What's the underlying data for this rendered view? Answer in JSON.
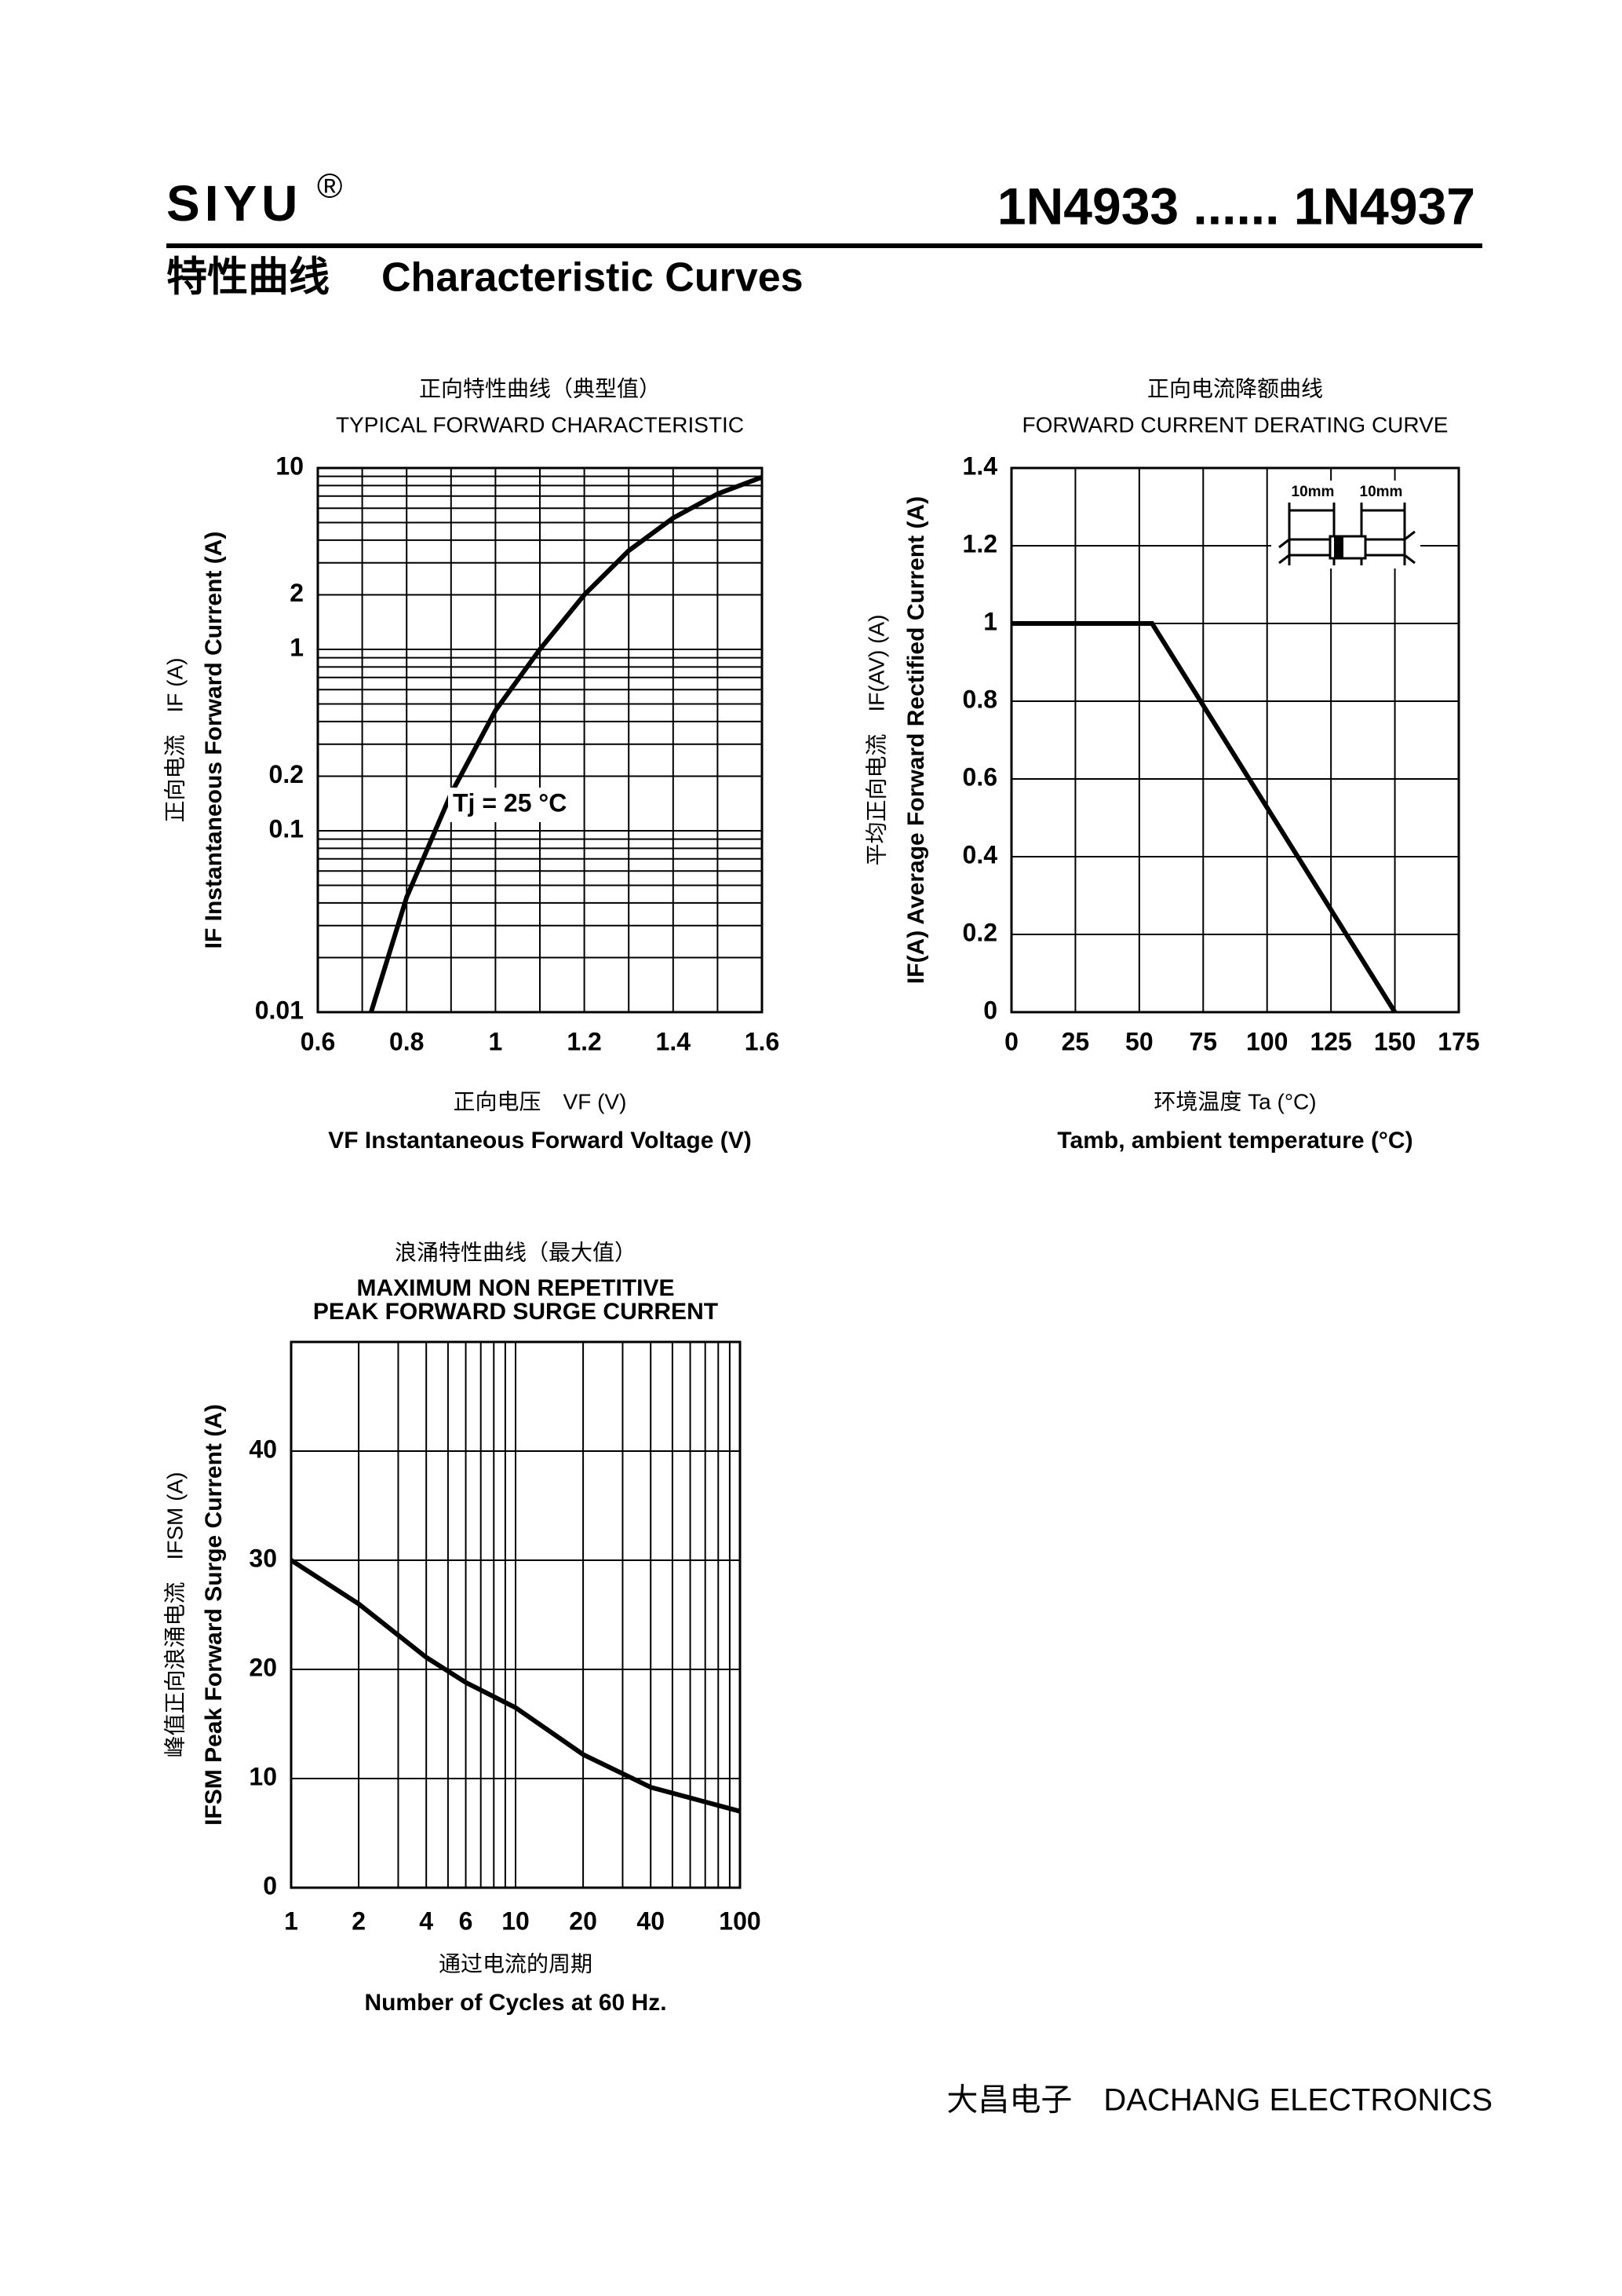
{
  "header": {
    "brand": "SIYU",
    "registered": "®",
    "part_range": "1N4933 ...... 1N4937",
    "section_cn": "特性曲线",
    "section_en": "Characteristic Curves"
  },
  "footer": "大昌电子　DACHANG ELECTRONICS",
  "chart_data": [
    {
      "type": "line",
      "titles": [
        "正向特性曲线（典型值）",
        "TYPICAL FORWARD CHARACTERISTIC"
      ],
      "xlabels": [
        "正向电压　VF (V)",
        "VF Instantaneous Forward Voltage (V)"
      ],
      "ylabels": [
        "正向电流　IF (A)",
        "IF Instantaneous Forward Current (A)"
      ],
      "annotation": "Tj = 25 °C",
      "log_y": true,
      "xlim": [
        0.6,
        1.6
      ],
      "ylim": [
        0.01,
        10
      ],
      "xticks": [
        0.6,
        0.8,
        1,
        1.2,
        1.4,
        1.6
      ],
      "yticks": [
        10,
        2,
        1,
        0.2,
        0.1,
        0.01
      ],
      "xgrid": [
        0.7,
        0.8,
        0.9,
        1,
        1.1,
        1.2,
        1.3,
        1.4,
        1.5
      ],
      "ygrid": [
        0.02,
        0.03,
        0.04,
        0.05,
        0.06,
        0.07,
        0.08,
        0.09,
        0.1,
        0.2,
        0.3,
        0.4,
        0.5,
        0.6,
        0.7,
        0.8,
        0.9,
        1,
        2,
        3,
        4,
        5,
        6,
        7,
        8,
        9
      ],
      "x": [
        0.72,
        0.8,
        0.9,
        1.0,
        1.1,
        1.2,
        1.3,
        1.4,
        1.5,
        1.6
      ],
      "series": [
        {
          "color": "#000000",
          "values": [
            0.01,
            0.043,
            0.16,
            0.46,
            1.0,
            2.0,
            3.5,
            5.3,
            7.2,
            8.9
          ]
        }
      ]
    },
    {
      "type": "line",
      "titles": [
        "正向电流降额曲线",
        "FORWARD CURRENT DERATING CURVE"
      ],
      "xlabels": [
        "环境温度 Ta (°C)",
        "Tamb, ambient temperature (°C)"
      ],
      "ylabels": [
        "平均正向电流　IF(AV) (A)",
        "IF(A) Average Forward Rectified Current (A)"
      ],
      "inset_labels": [
        "10mm",
        "10mm"
      ],
      "xlim": [
        0,
        175
      ],
      "ylim": [
        0,
        1.4
      ],
      "xticks": [
        0,
        25,
        50,
        75,
        100,
        125,
        150,
        175
      ],
      "yticks": [
        0,
        0.2,
        0.4,
        0.6,
        0.8,
        1,
        1.2,
        1.4
      ],
      "x": [
        0,
        55,
        150
      ],
      "series": [
        {
          "color": "#000000",
          "values": [
            1,
            1,
            0
          ]
        }
      ]
    },
    {
      "type": "line",
      "titles": [
        "浪涌特性曲线（最大值）",
        "MAXIMUM NON REPETITIVE",
        "PEAK FORWARD SURGE CURRENT"
      ],
      "xlabels": [
        "通过电流的周期",
        "Number  of  Cycles at 60 Hz."
      ],
      "ylabels": [
        "峰值正向浪涌电流　IFSM (A)",
        "IFSM Peak Forward Surge Current (A)"
      ],
      "log_x": true,
      "xlim": [
        1,
        100
      ],
      "ylim": [
        0,
        50
      ],
      "xticks": [
        1,
        2,
        4,
        6,
        10,
        20,
        40,
        100
      ],
      "yticks": [
        0,
        10,
        20,
        30,
        40
      ],
      "xgrid": [
        2,
        3,
        4,
        5,
        6,
        7,
        8,
        9,
        10,
        20,
        30,
        40,
        50,
        60,
        70,
        80,
        90
      ],
      "x": [
        1,
        2,
        4,
        6,
        10,
        20,
        40,
        100
      ],
      "series": [
        {
          "color": "#000000",
          "values": [
            30,
            26,
            21.1,
            18.8,
            16.5,
            12.2,
            9.2,
            7.0
          ]
        }
      ]
    }
  ]
}
